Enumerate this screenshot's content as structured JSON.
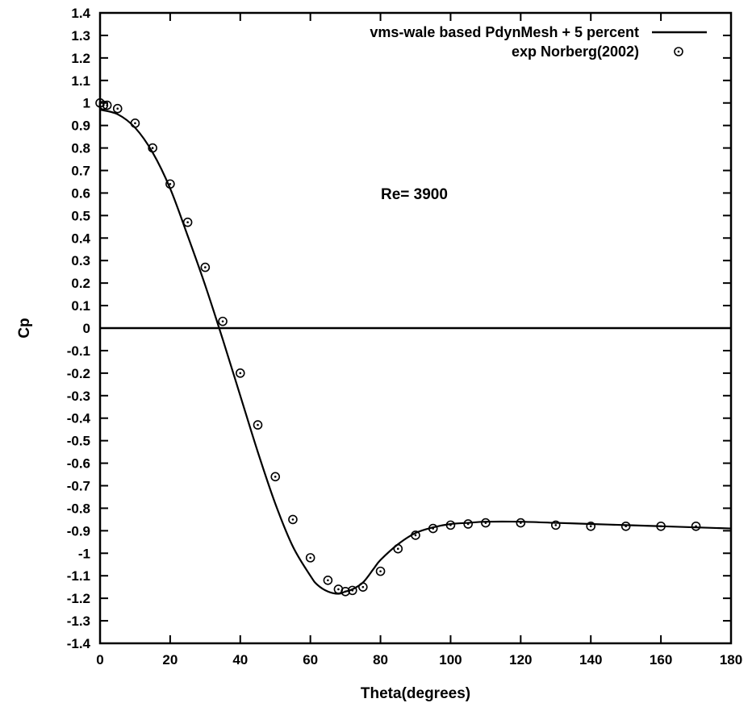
{
  "chart_data": {
    "type": "line",
    "title": "",
    "xlabel": "Theta(degrees)",
    "ylabel": "Cp",
    "xlim": [
      0,
      180
    ],
    "ylim": [
      -1.4,
      1.4
    ],
    "x_ticks": [
      0,
      20,
      40,
      60,
      80,
      100,
      120,
      140,
      160,
      180
    ],
    "y_ticks": [
      1.4,
      1.3,
      1.2,
      1.1,
      1,
      0.9,
      0.8,
      0.7,
      0.6,
      0.5,
      0.4,
      0.3,
      0.2,
      0.1,
      0,
      -0.1,
      -0.2,
      -0.3,
      -0.4,
      -0.5,
      -0.6,
      -0.7,
      -0.8,
      -0.9,
      -1,
      -1.1,
      -1.2,
      -1.3,
      -1.4
    ],
    "y_tick_labels": [
      "1.4",
      "1.3",
      "1.2",
      "1.1",
      "1",
      "0.9",
      "0.8",
      "0.7",
      "0.6",
      "0.5",
      "0.4",
      "0.3",
      "0.2",
      "0.1",
      "0",
      "-0.1",
      "-0.2",
      "-0.3",
      "-0.4",
      "-0.5",
      "-0.6",
      "-0.7",
      "-0.8",
      "-0.9",
      "-1",
      "-1.1",
      "-1.2",
      "-1.3",
      "-1.4"
    ],
    "grid": false,
    "legend_position": "top-right",
    "zero_line": true,
    "annotation": "Re= 3900",
    "series": [
      {
        "name": "vms-wale based PdynMesh + 5 percent",
        "style": "line",
        "color": "#000000",
        "x": [
          0,
          5,
          10,
          15,
          20,
          25,
          30,
          35,
          40,
          45,
          50,
          55,
          60,
          62,
          65,
          68,
          70,
          72,
          75,
          78,
          80,
          85,
          90,
          95,
          100,
          105,
          110,
          120,
          130,
          140,
          150,
          160,
          170,
          180
        ],
        "y": [
          0.97,
          0.95,
          0.89,
          0.78,
          0.62,
          0.41,
          0.19,
          -0.05,
          -0.3,
          -0.55,
          -0.78,
          -0.97,
          -1.1,
          -1.14,
          -1.17,
          -1.18,
          -1.17,
          -1.16,
          -1.13,
          -1.07,
          -1.03,
          -0.96,
          -0.91,
          -0.885,
          -0.87,
          -0.865,
          -0.86,
          -0.86,
          -0.865,
          -0.87,
          -0.875,
          -0.88,
          -0.885,
          -0.89
        ]
      },
      {
        "name": "exp Norberg(2002)",
        "style": "points",
        "color": "#000000",
        "x": [
          0,
          1,
          2,
          5,
          10,
          15,
          20,
          25,
          30,
          35,
          40,
          45,
          50,
          55,
          60,
          65,
          68,
          70,
          72,
          75,
          80,
          85,
          90,
          95,
          100,
          105,
          110,
          120,
          130,
          140,
          150,
          160,
          170
        ],
        "y": [
          1.0,
          0.99,
          0.99,
          0.975,
          0.91,
          0.8,
          0.64,
          0.47,
          0.27,
          0.03,
          -0.2,
          -0.43,
          -0.66,
          -0.85,
          -1.02,
          -1.12,
          -1.16,
          -1.17,
          -1.165,
          -1.15,
          -1.08,
          -0.98,
          -0.92,
          -0.89,
          -0.875,
          -0.87,
          -0.865,
          -0.865,
          -0.875,
          -0.88,
          -0.88,
          -0.88,
          -0.88
        ]
      }
    ]
  }
}
